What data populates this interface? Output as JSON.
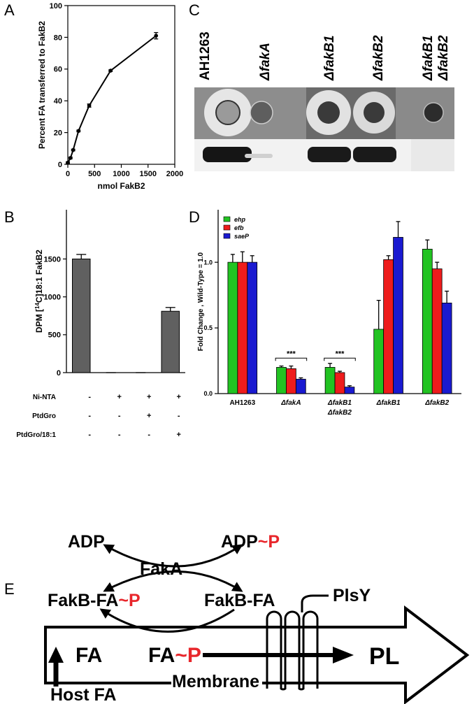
{
  "panel_labels": [
    "A",
    "B",
    "C",
    "D",
    "E"
  ],
  "chart_data": [
    {
      "type": "line",
      "xlabel": "nmol FakB2",
      "ylabel": "Percent FA transferred to FakB2",
      "x": [
        0,
        50,
        100,
        200,
        400,
        800,
        1650
      ],
      "values": [
        1,
        4,
        9,
        21,
        37,
        59,
        81
      ],
      "errors": [
        0.5,
        0.5,
        0.5,
        0.5,
        1,
        0.5,
        2
      ],
      "color": "#000000",
      "xlim": [
        0,
        2000
      ],
      "xticks": [
        0,
        500,
        1000,
        1500,
        2000
      ],
      "ylim": [
        0,
        100
      ],
      "yticks": [
        0,
        20,
        40,
        60,
        80,
        100
      ]
    },
    {
      "type": "bar",
      "ylabel_parts": [
        "DPM [",
        "14",
        "C]18:1 FakB2"
      ],
      "values": [
        1500,
        0,
        0,
        810
      ],
      "errors": [
        60,
        0,
        0,
        50
      ],
      "color": "#606060",
      "ylim": [
        0,
        2150
      ],
      "yticks": [
        0,
        500,
        1000,
        1500
      ],
      "conditions": [
        {
          "name": "Ni-NTA",
          "signs": [
            "-",
            "+",
            "+",
            "+"
          ]
        },
        {
          "name": "PtdGro",
          "signs": [
            "-",
            "-",
            "+",
            "-"
          ]
        },
        {
          "name": "PtdGro/18:1",
          "signs": [
            "-",
            "-",
            "-",
            "+"
          ]
        }
      ]
    },
    {
      "type": "grouped_bar",
      "ylabel": "Fold Change , Wild-Type = 1.0",
      "categories": [
        [
          "AH1263"
        ],
        [
          "ΔfakA"
        ],
        [
          "ΔfakB1",
          "ΔfakB2"
        ],
        [
          "ΔfakB1"
        ],
        [
          "ΔfakB2"
        ]
      ],
      "series": [
        {
          "name": "ehp",
          "color": "#22c322",
          "values": [
            1.0,
            0.2,
            0.2,
            0.49,
            1.1
          ],
          "errors": [
            0.06,
            0.01,
            0.03,
            0.22,
            0.07
          ]
        },
        {
          "name": "efb",
          "color": "#ee1c1c",
          "values": [
            1.0,
            0.19,
            0.16,
            1.02,
            0.95
          ],
          "errors": [
            0.08,
            0.02,
            0.01,
            0.03,
            0.05
          ]
        },
        {
          "name": "saeP",
          "color": "#1a1ad0",
          "values": [
            1.0,
            0.11,
            0.05,
            1.19,
            0.69
          ],
          "errors": [
            0.05,
            0.01,
            0.01,
            0.12,
            0.09
          ]
        }
      ],
      "ylim": [
        0,
        1.4
      ],
      "yticks": [
        {
          "value": 0,
          "label": "0.0"
        },
        {
          "value": 0.5,
          "label": "0.5"
        },
        {
          "value": 1,
          "label": "1.0"
        }
      ],
      "annotations": [
        "***",
        "***"
      ]
    }
  ],
  "panel_c": {
    "strains": [
      [
        "AH1263"
      ],
      [
        "ΔfakA"
      ],
      [
        "ΔfakB1"
      ],
      [
        "ΔfakB2"
      ],
      [
        "ΔfakB1",
        "ΔfakB2"
      ]
    ]
  },
  "panel_e": {
    "adp": {
      "text": "ADP"
    },
    "adpp": {
      "text": "ADP",
      "red": "~P"
    },
    "faka": {
      "text": "FakA"
    },
    "fakbfap": {
      "text": "FakB-FA",
      "red": "~P"
    },
    "fakbfa": {
      "text": "FakB-FA"
    },
    "plsy": {
      "text": "PlsY"
    },
    "fa": {
      "text": "FA"
    },
    "fap": {
      "text": "FA",
      "red": "~P"
    },
    "pl": {
      "text": "PL"
    },
    "membrane": {
      "text": "Membrane"
    },
    "hostfa": {
      "text": "Host FA"
    }
  }
}
